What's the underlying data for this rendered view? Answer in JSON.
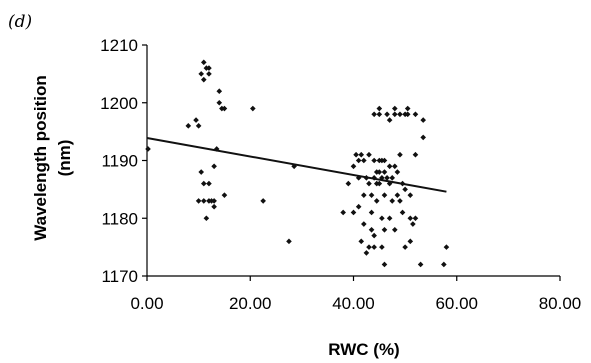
{
  "chart_data": {
    "type": "scatter",
    "panel_label": "(d)",
    "xlabel": "RWC (%)",
    "ylabel_lines": [
      "Wavelength position",
      "(nm)"
    ],
    "xlim": [
      0,
      80
    ],
    "ylim": [
      1170,
      1210
    ],
    "x_ticks": [
      0,
      20,
      40,
      60,
      80
    ],
    "x_tick_labels": [
      "0.00",
      "20.00",
      "40.00",
      "60.00",
      "80.00"
    ],
    "y_ticks": [
      1170,
      1180,
      1190,
      1200,
      1210
    ],
    "y_tick_labels": [
      "1170",
      "1180",
      "1190",
      "1200",
      "1210"
    ],
    "grid": false,
    "trendline": {
      "x": [
        0,
        58
      ],
      "y": [
        1193.9,
        1184.6
      ]
    },
    "colors": {
      "points": "#111111",
      "line": "#111111",
      "axes": "#000000"
    },
    "series": [
      {
        "points": [
          [
            0.2,
            1192
          ],
          [
            8,
            1196
          ],
          [
            9.5,
            1197
          ],
          [
            10,
            1196
          ],
          [
            10.5,
            1205
          ],
          [
            11,
            1207
          ],
          [
            11,
            1204
          ],
          [
            11.5,
            1206
          ],
          [
            12,
            1205
          ],
          [
            12,
            1206
          ],
          [
            10,
            1183
          ],
          [
            10.5,
            1188
          ],
          [
            11,
            1183
          ],
          [
            11,
            1186
          ],
          [
            11.5,
            1180
          ],
          [
            12,
            1183
          ],
          [
            12,
            1186
          ],
          [
            12.5,
            1183
          ],
          [
            13,
            1182
          ],
          [
            13,
            1183
          ],
          [
            13,
            1189
          ],
          [
            13.5,
            1192
          ],
          [
            14,
            1200
          ],
          [
            14,
            1202
          ],
          [
            14.5,
            1199
          ],
          [
            15,
            1184
          ],
          [
            15,
            1199
          ],
          [
            20.5,
            1199
          ],
          [
            22.5,
            1183
          ],
          [
            27.5,
            1176
          ],
          [
            28.5,
            1189
          ],
          [
            38,
            1181
          ],
          [
            39,
            1186
          ],
          [
            40,
            1189
          ],
          [
            40,
            1181
          ],
          [
            40.5,
            1191
          ],
          [
            41,
            1182
          ],
          [
            41,
            1187
          ],
          [
            41,
            1190
          ],
          [
            41.5,
            1191
          ],
          [
            41.5,
            1176
          ],
          [
            42,
            1184
          ],
          [
            42,
            1190
          ],
          [
            42,
            1179
          ],
          [
            42.5,
            1187
          ],
          [
            42.5,
            1174
          ],
          [
            43,
            1191
          ],
          [
            43,
            1186
          ],
          [
            43,
            1175
          ],
          [
            43.5,
            1178
          ],
          [
            43.5,
            1184
          ],
          [
            43.5,
            1181
          ],
          [
            44,
            1190
          ],
          [
            44,
            1198
          ],
          [
            44,
            1187
          ],
          [
            44,
            1177
          ],
          [
            44,
            1175
          ],
          [
            44.5,
            1186
          ],
          [
            44.5,
            1183
          ],
          [
            44.5,
            1188
          ],
          [
            45,
            1188
          ],
          [
            45,
            1190
          ],
          [
            45,
            1199
          ],
          [
            45,
            1198
          ],
          [
            45,
            1186
          ],
          [
            45.5,
            1190
          ],
          [
            45.5,
            1187
          ],
          [
            45.5,
            1180
          ],
          [
            45.5,
            1175
          ],
          [
            46,
            1188
          ],
          [
            46,
            1190
          ],
          [
            46,
            1184
          ],
          [
            46,
            1172
          ],
          [
            46,
            1178
          ],
          [
            46.5,
            1198
          ],
          [
            46.5,
            1187
          ],
          [
            47,
            1189
          ],
          [
            47,
            1180
          ],
          [
            47,
            1186
          ],
          [
            47,
            1197
          ],
          [
            47.5,
            1187
          ],
          [
            47.5,
            1183
          ],
          [
            48,
            1198
          ],
          [
            48,
            1189
          ],
          [
            48,
            1199
          ],
          [
            48,
            1178
          ],
          [
            48.5,
            1188
          ],
          [
            48.5,
            1184
          ],
          [
            49,
            1183
          ],
          [
            49,
            1198
          ],
          [
            49,
            1191
          ],
          [
            49.5,
            1186
          ],
          [
            49.5,
            1181
          ],
          [
            50,
            1198
          ],
          [
            50,
            1185
          ],
          [
            50,
            1175
          ],
          [
            50.5,
            1199
          ],
          [
            50.5,
            1198
          ],
          [
            51,
            1184
          ],
          [
            51,
            1180
          ],
          [
            51,
            1176
          ],
          [
            51.5,
            1179
          ],
          [
            52,
            1198
          ],
          [
            52,
            1180
          ],
          [
            52,
            1191
          ],
          [
            53,
            1172
          ],
          [
            53.5,
            1197
          ],
          [
            53.5,
            1194
          ],
          [
            57.5,
            1172
          ],
          [
            58,
            1175
          ]
        ]
      }
    ]
  }
}
